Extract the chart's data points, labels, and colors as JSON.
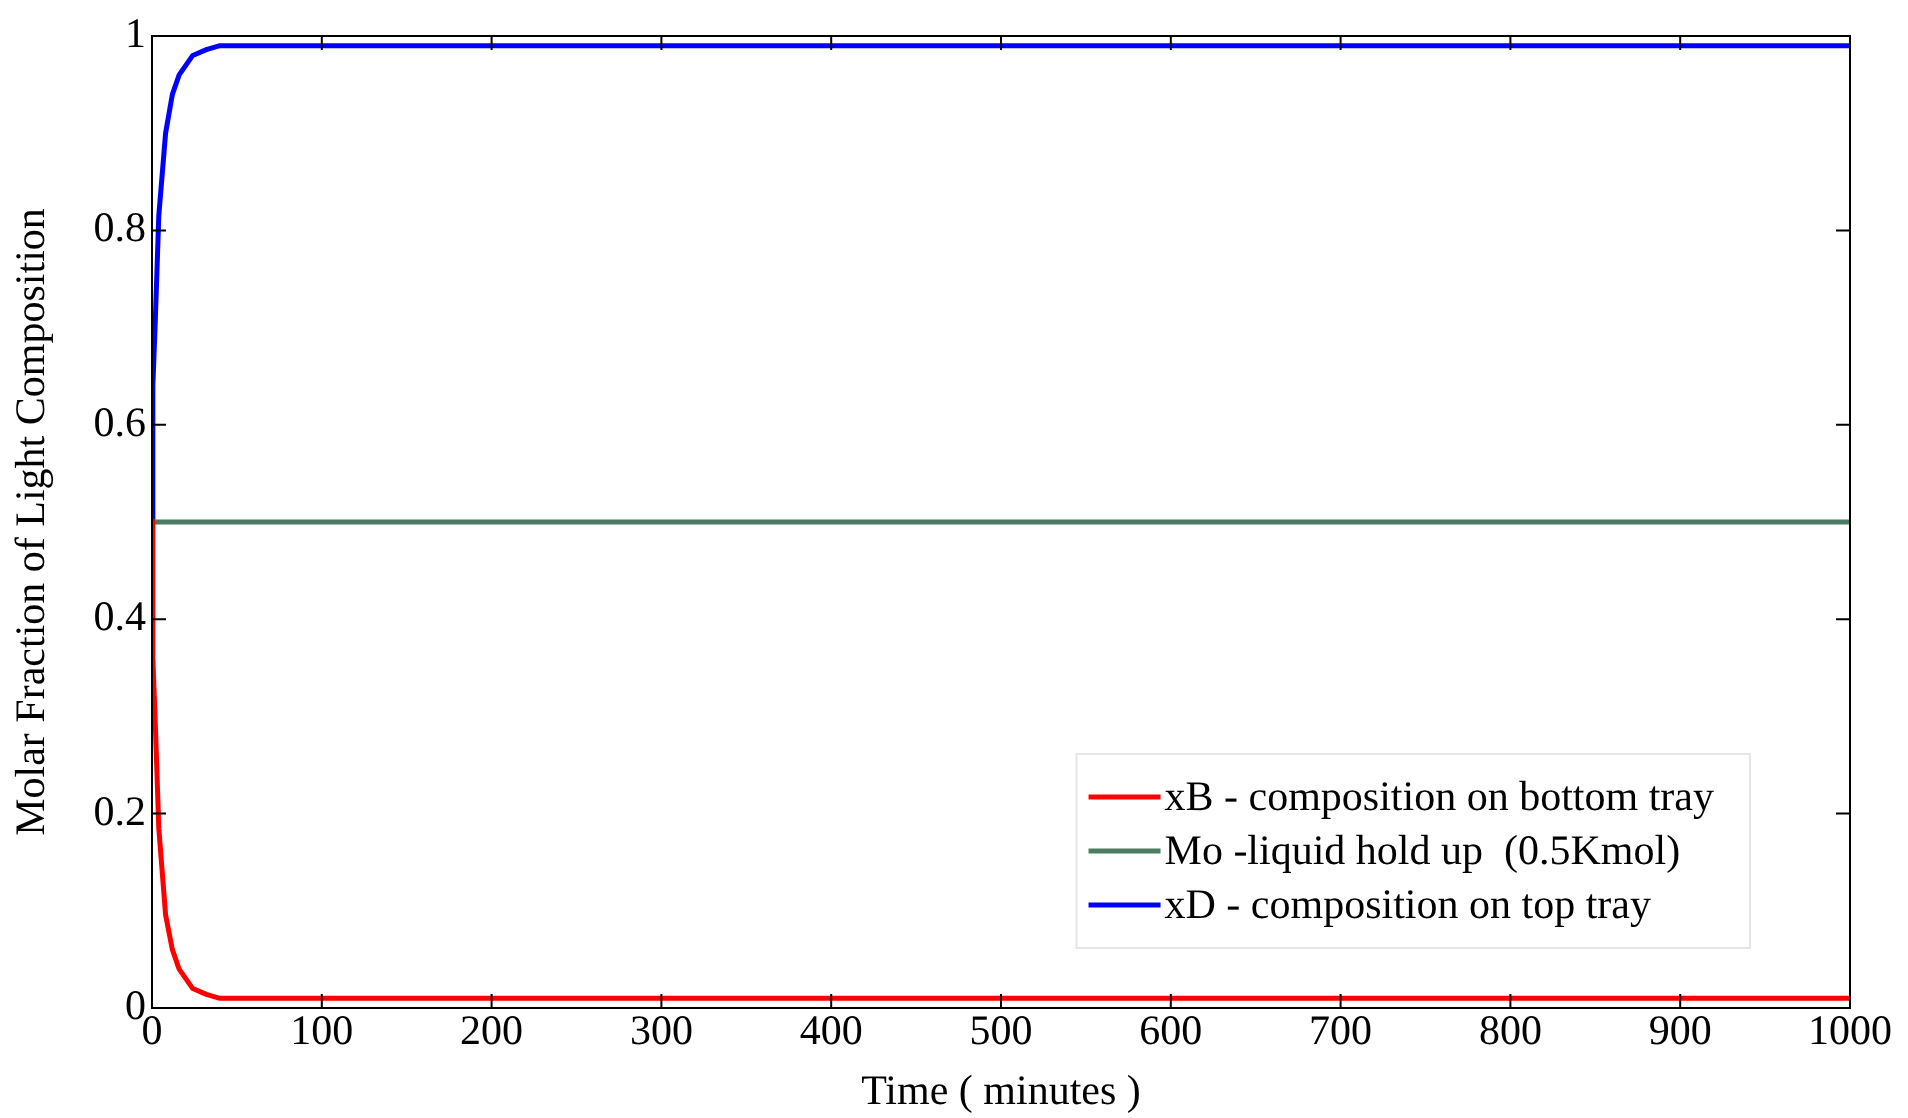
{
  "chart_data": {
    "type": "line",
    "xlabel": "Time ( minutes )",
    "ylabel": "Molar Fraction of Light Composition",
    "xlim": [
      0,
      1000
    ],
    "xticks": [
      0,
      100,
      200,
      300,
      400,
      500,
      600,
      700,
      800,
      900,
      1000
    ],
    "ylim": [
      0,
      1
    ],
    "yticks": [
      0,
      0.2,
      0.4,
      0.6,
      0.8,
      1
    ],
    "grid": false,
    "legend": "bottom right",
    "marker": "none",
    "line_style": "solid",
    "series": [
      {
        "name": "xB - composition on bottom tray",
        "color": "#ff0000",
        "x": [
          0,
          0.5,
          2,
          4,
          8,
          12,
          16,
          24,
          32,
          40,
          60,
          100,
          1000
        ],
        "values": [
          0.5,
          0.36,
          0.29,
          0.185,
          0.096,
          0.06,
          0.04,
          0.02,
          0.014,
          0.01,
          0.01,
          0.01,
          0.01
        ]
      },
      {
        "name": "Mo -liquid hold up  (0.5Kmol)",
        "color": "#4a7c62",
        "x": [
          0,
          1000
        ],
        "values": [
          0.5,
          0.5
        ]
      },
      {
        "name": "xD - composition on top tray",
        "color": "#0000ff",
        "x": [
          0,
          0.5,
          2,
          4,
          8,
          12,
          16,
          24,
          32,
          40,
          60,
          100,
          1000
        ],
        "values": [
          0.5,
          0.64,
          0.71,
          0.815,
          0.9,
          0.94,
          0.96,
          0.98,
          0.986,
          0.99,
          0.99,
          0.99,
          0.99
        ]
      }
    ]
  }
}
